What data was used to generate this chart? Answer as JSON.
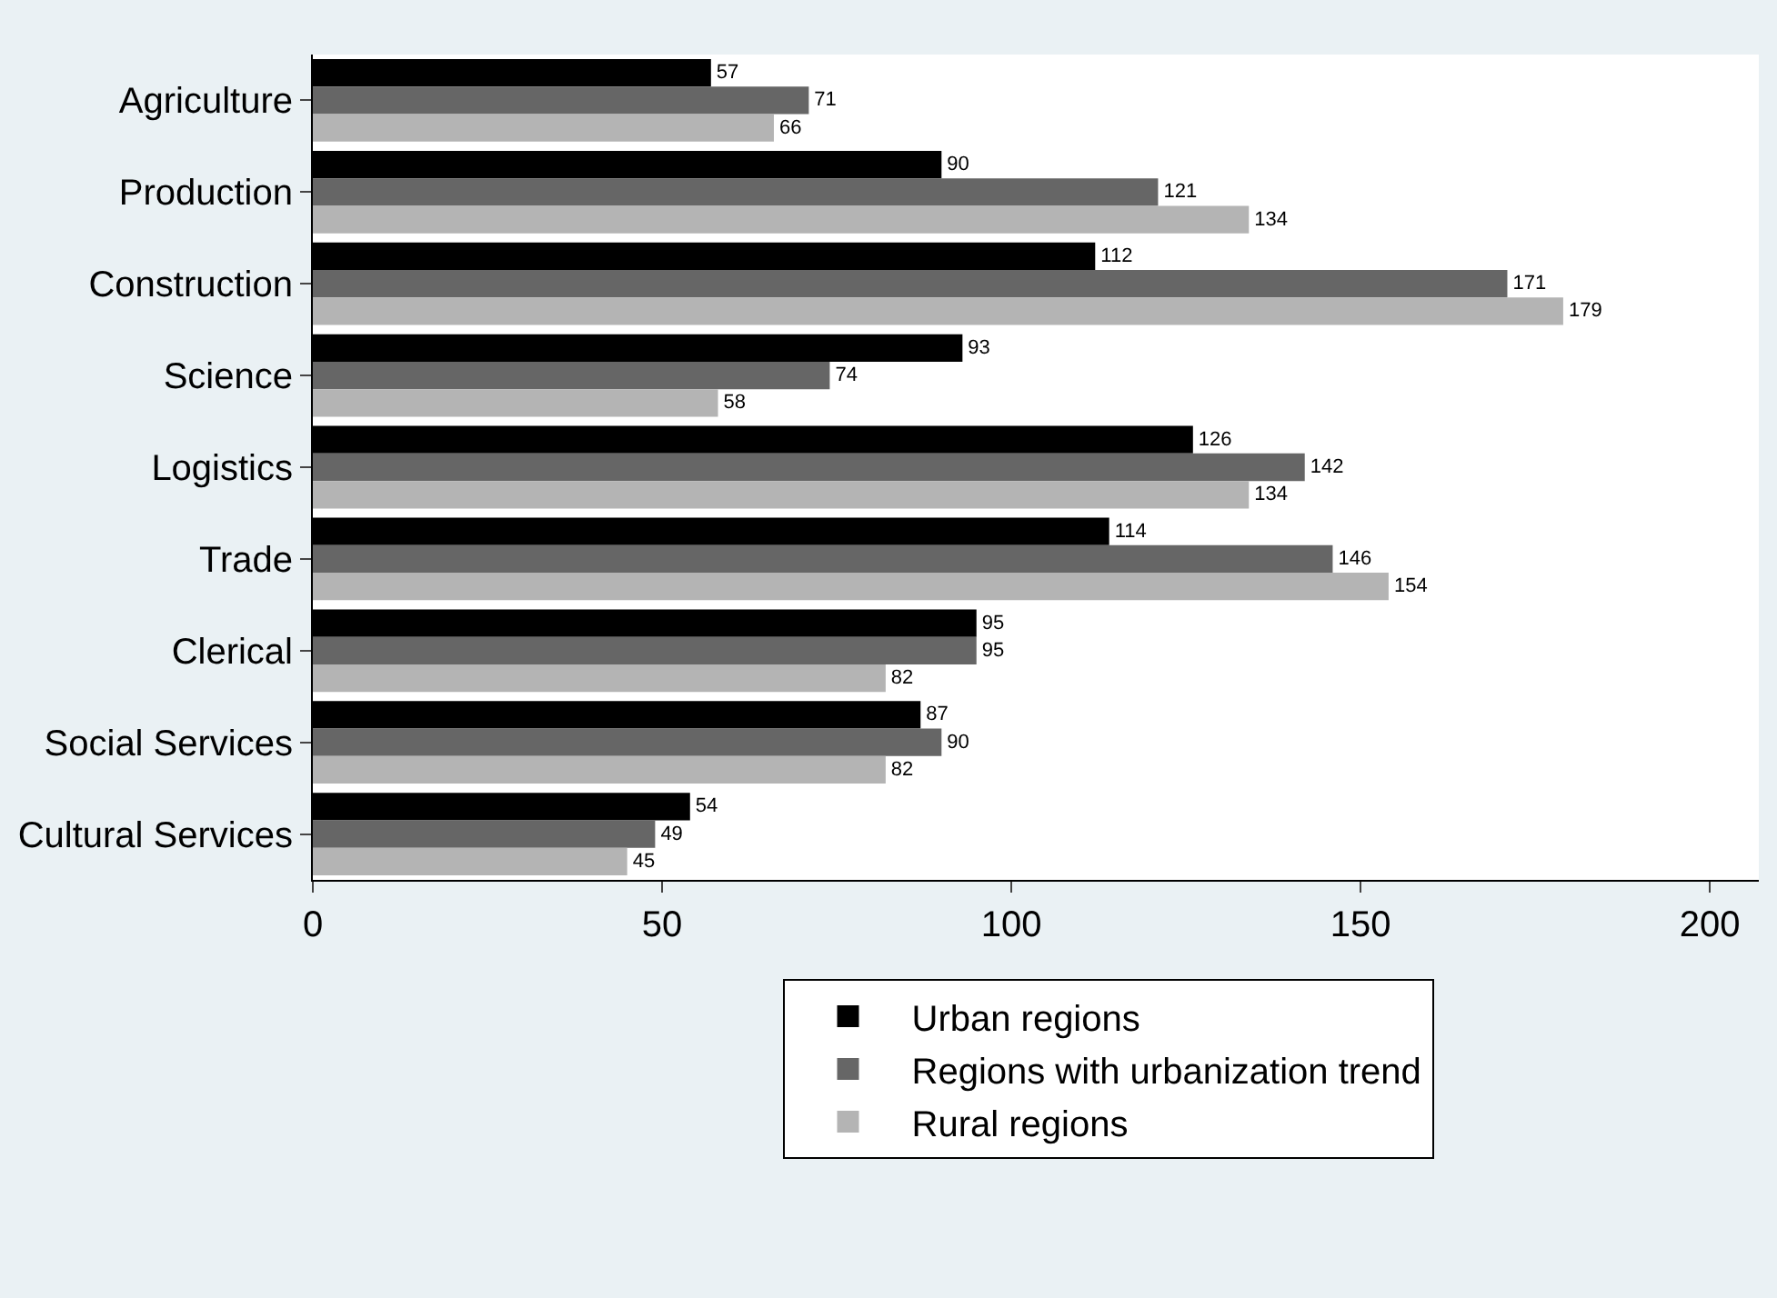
{
  "chart_data": {
    "type": "bar",
    "orientation": "horizontal",
    "categories": [
      "Agriculture",
      "Production",
      "Construction",
      "Science",
      "Logistics",
      "Trade",
      "Clerical",
      "Social Services",
      "Cultural Services"
    ],
    "series": [
      {
        "name": "Urban regions",
        "color": "#000000",
        "values": [
          57,
          90,
          112,
          93,
          126,
          114,
          95,
          87,
          54
        ]
      },
      {
        "name": "Regions with urbanization trend",
        "color": "#666666",
        "values": [
          71,
          121,
          171,
          74,
          142,
          146,
          95,
          90,
          49
        ]
      },
      {
        "name": "Rural regions",
        "color": "#b4b4b4",
        "values": [
          66,
          134,
          179,
          58,
          134,
          154,
          82,
          82,
          45
        ]
      }
    ],
    "xlim": [
      0,
      207
    ],
    "xticks": [
      0,
      50,
      100,
      150,
      200
    ],
    "data_labels": true,
    "legend": "bottom"
  }
}
